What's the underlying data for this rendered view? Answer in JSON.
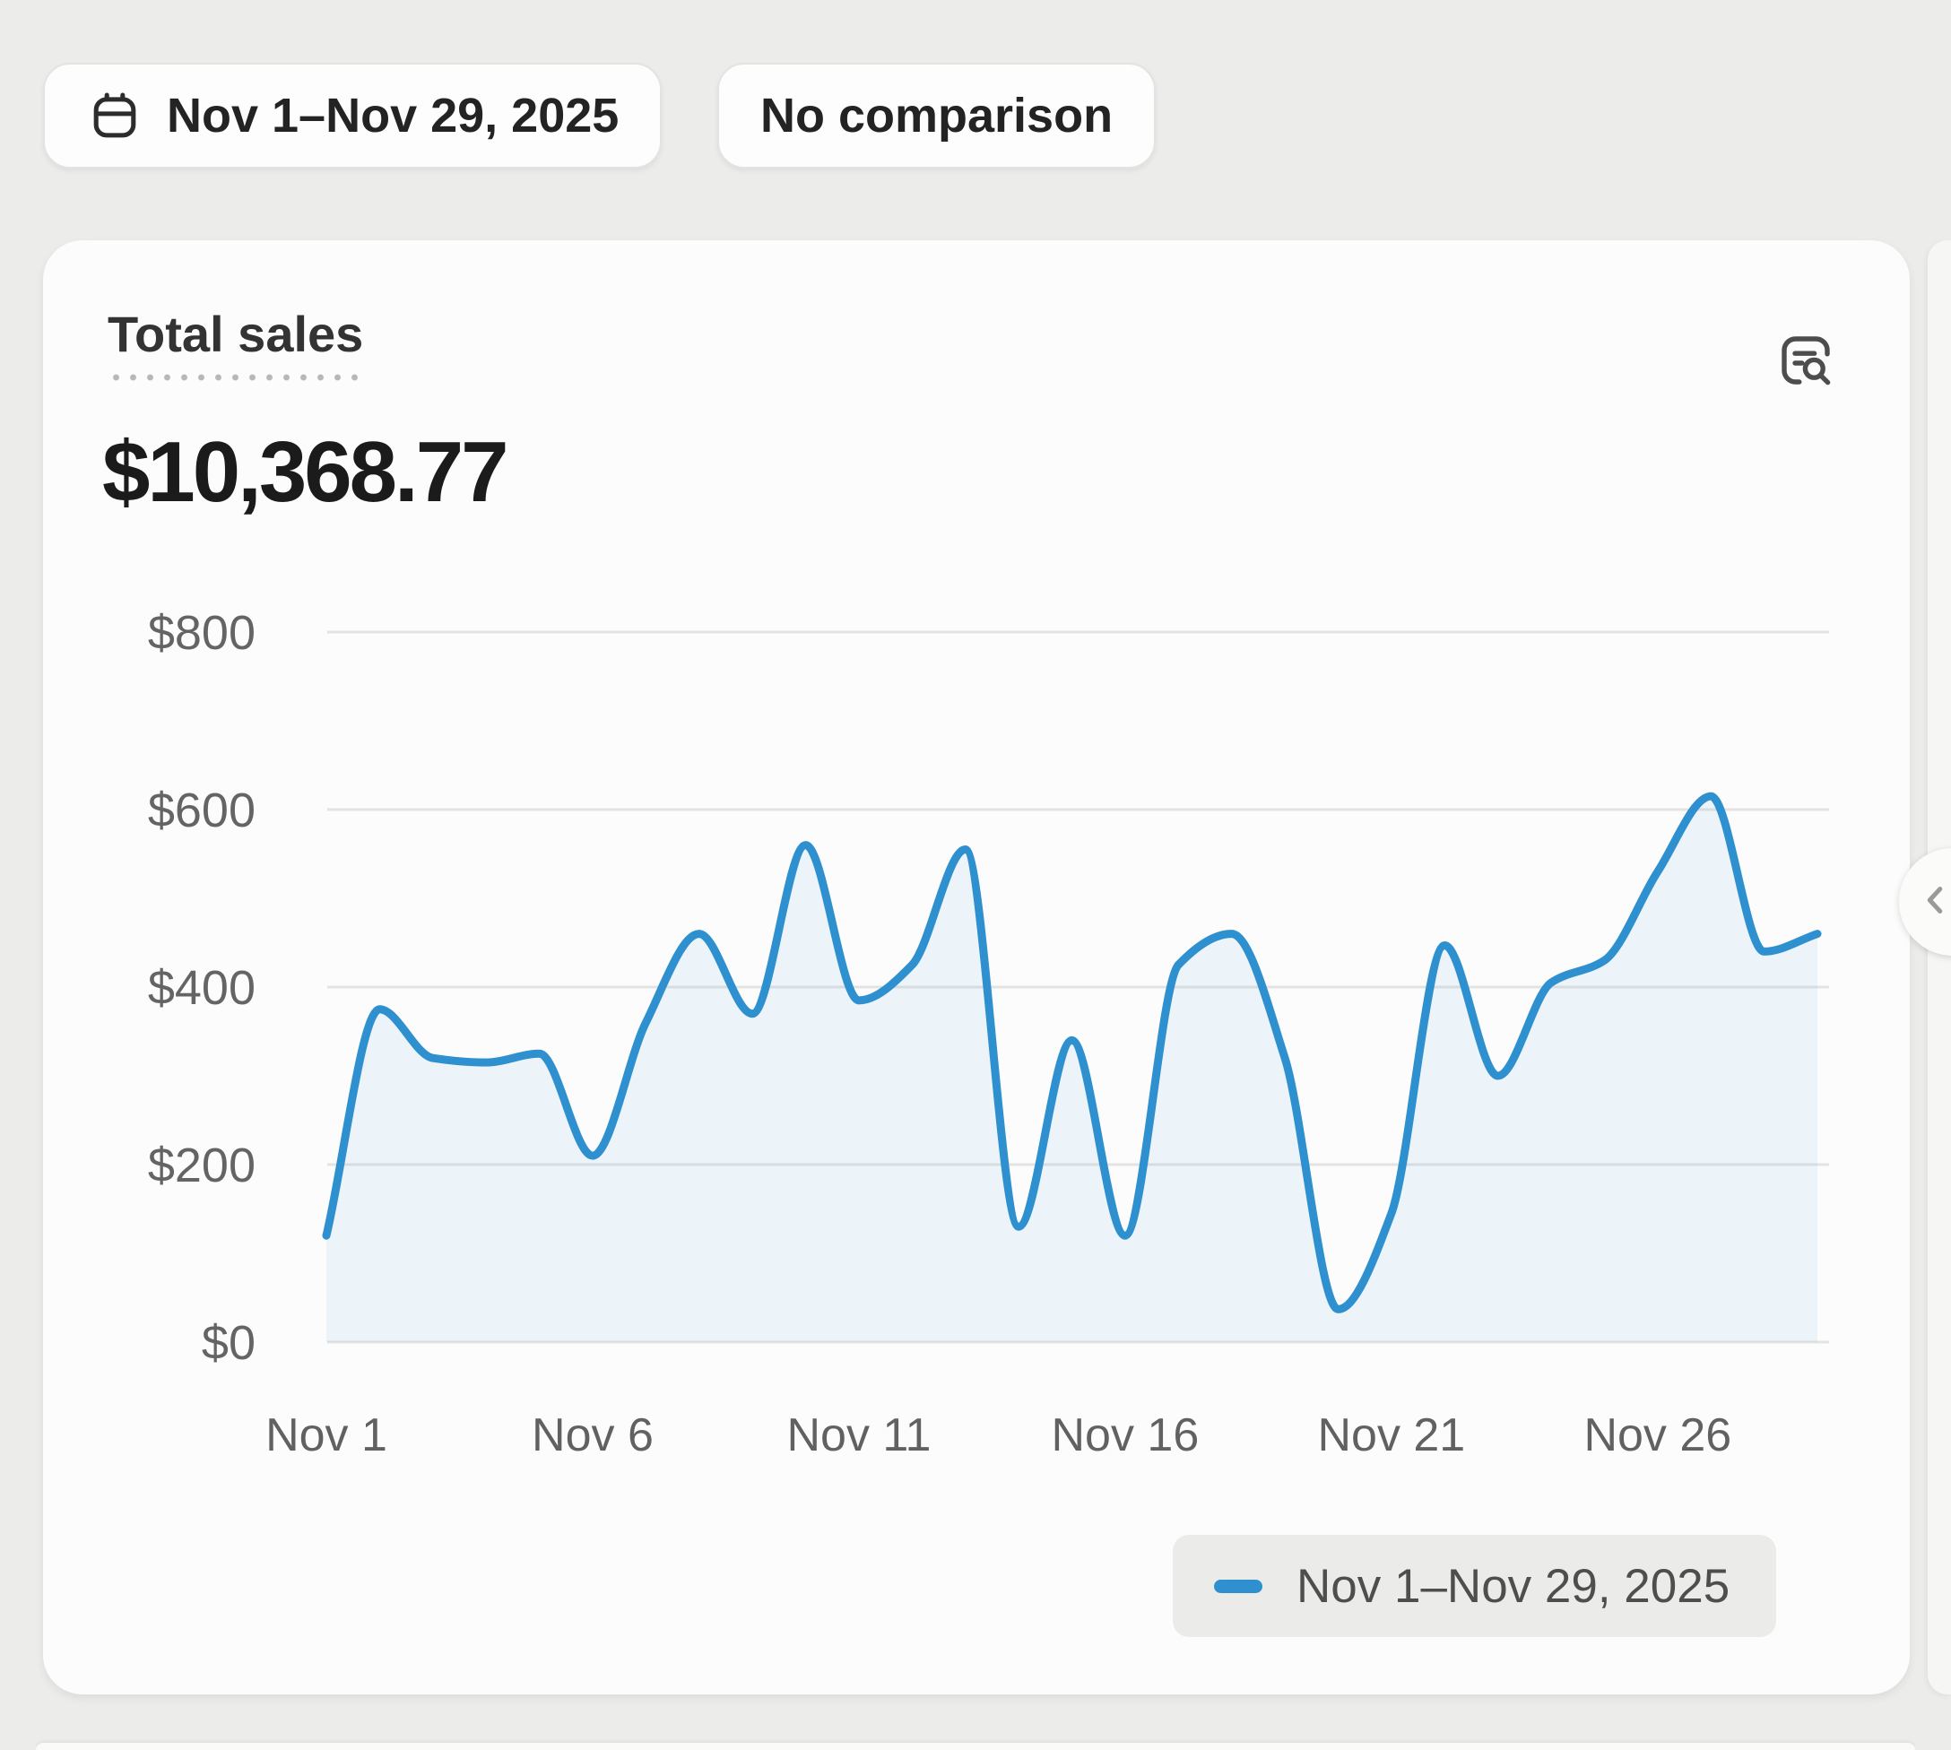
{
  "toolbar": {
    "date_range_label": "Nov 1–Nov 29, 2025",
    "comparison_label": "No comparison"
  },
  "card": {
    "title": "Total sales",
    "total_value": "$10,368.77"
  },
  "legend": {
    "label": "Nov 1–Nov 29, 2025",
    "marker_color": "#2f90cf"
  },
  "colors": {
    "line": "#2f90cf",
    "area_fill": "rgba(47,144,207,0.07)",
    "gridline": "#e3e3e1"
  },
  "chart_data": {
    "type": "line",
    "title": "Total sales",
    "x_range": [
      "Nov 1",
      "Nov 29"
    ],
    "days": [
      1,
      2,
      3,
      4,
      5,
      6,
      7,
      8,
      9,
      10,
      11,
      12,
      13,
      14,
      15,
      16,
      17,
      18,
      19,
      20,
      21,
      22,
      23,
      24,
      25,
      26,
      27,
      28,
      29
    ],
    "series": [
      {
        "name": "Nov 1–Nov 29, 2025",
        "color": "#2f90cf",
        "values": [
          120,
          375,
          320,
          315,
          325,
          210,
          360,
          460,
          370,
          560,
          385,
          425,
          555,
          130,
          340,
          120,
          425,
          460,
          320,
          37,
          145,
          447,
          300,
          405,
          430,
          530,
          615,
          440,
          460
        ]
      }
    ],
    "y_ticks": [
      {
        "value": 800,
        "label": "$800"
      },
      {
        "value": 600,
        "label": "$600"
      },
      {
        "value": 400,
        "label": "$400"
      },
      {
        "value": 200,
        "label": "$200"
      },
      {
        "value": 0,
        "label": "$0"
      }
    ],
    "x_ticks": [
      {
        "day": 1,
        "label": "Nov 1"
      },
      {
        "day": 6,
        "label": "Nov 6"
      },
      {
        "day": 11,
        "label": "Nov 11"
      },
      {
        "day": 16,
        "label": "Nov 16"
      },
      {
        "day": 21,
        "label": "Nov 21"
      },
      {
        "day": 26,
        "label": "Nov 26"
      }
    ],
    "ylim": [
      0,
      800
    ],
    "grid": true,
    "legend_position": "bottom-right"
  }
}
